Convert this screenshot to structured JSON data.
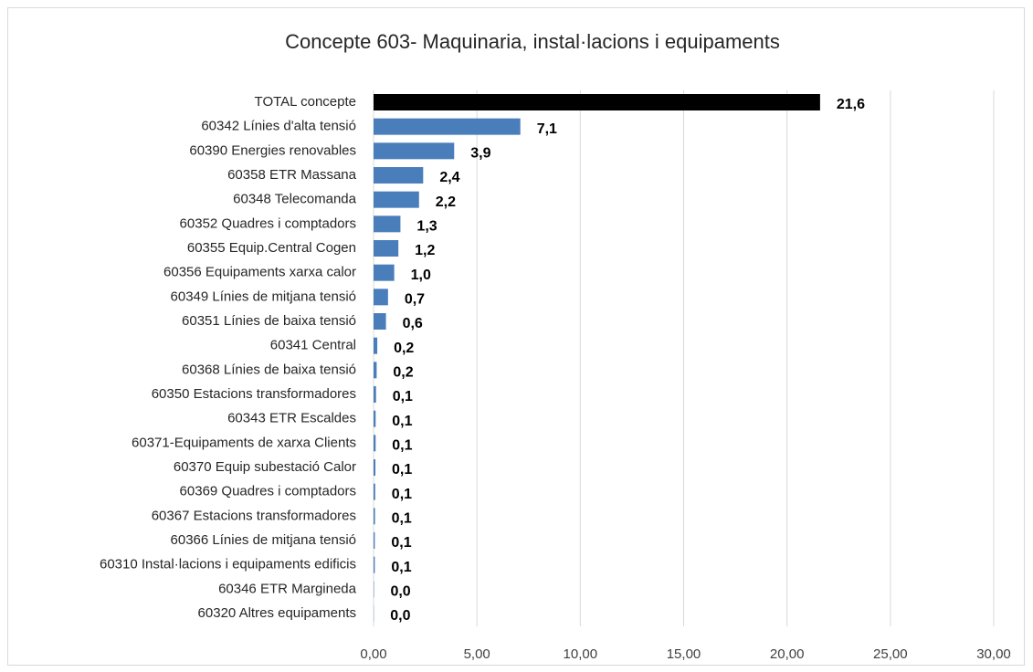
{
  "chart_data": {
    "type": "barh",
    "title": "Concepte 603- Maquinaria, instal·lacions i equipaments",
    "categories": [
      "TOTAL concepte",
      "60342 Línies d'alta tensió",
      "60390 Energies renovables",
      "60358 ETR Massana",
      "60348 Telecomanda",
      "60352 Quadres i comptadors",
      "60355 Equip.Central Cogen",
      "60356 Equipaments xarxa calor",
      "60349 Línies de mitjana tensió",
      "60351 Línies de baixa tensió",
      "60341 Central",
      "60368 Línies de baixa tensió",
      "60350 Estacions transformadores",
      "60343 ETR Escaldes",
      "60371-Equipaments de xarxa Clients",
      "60370 Equip subestació Calor",
      "60369 Quadres i comptadors",
      "60367 Estacions transformadores",
      "60366 Línies de mitjana tensió",
      "60310 Instal·lacions i equipaments edificis",
      "60346 ETR Margineda",
      "60320 Altres equipaments"
    ],
    "values": [
      21.6,
      7.1,
      3.9,
      2.4,
      2.2,
      1.3,
      1.2,
      1.0,
      0.7,
      0.6,
      0.18,
      0.15,
      0.12,
      0.1,
      0.1,
      0.09,
      0.08,
      0.07,
      0.06,
      0.06,
      0.02,
      0.01
    ],
    "value_labels": [
      "21,6",
      "7,1",
      "3,9",
      "2,4",
      "2,2",
      "1,3",
      "1,2",
      "1,0",
      "0,7",
      "0,6",
      "0,2",
      "0,2",
      "0,1",
      "0,1",
      "0,1",
      "0,1",
      "0,1",
      "0,1",
      "0,1",
      "0,1",
      "0,0",
      "0,0"
    ],
    "colors": [
      "#000000",
      "#4a7ebb",
      "#4a7ebb",
      "#4a7ebb",
      "#4a7ebb",
      "#4a7ebb",
      "#4a7ebb",
      "#4a7ebb",
      "#4a7ebb",
      "#4a7ebb",
      "#4a7ebb",
      "#4a7ebb",
      "#4a7ebb",
      "#4a7ebb",
      "#4a7ebb",
      "#4a7ebb",
      "#4a7ebb",
      "#4a7ebb",
      "#4a7ebb",
      "#4a7ebb",
      "#4a7ebb",
      "#4a7ebb"
    ],
    "xlim": [
      0,
      30
    ],
    "xticks": [
      {
        "value": 0,
        "label": "0,00"
      },
      {
        "value": 5,
        "label": "5,00"
      },
      {
        "value": 10,
        "label": "10,00"
      },
      {
        "value": 15,
        "label": "15,00"
      },
      {
        "value": 20,
        "label": "20,00"
      },
      {
        "value": 25,
        "label": "25,00"
      },
      {
        "value": 30,
        "label": "30,00"
      }
    ],
    "grid": true
  }
}
